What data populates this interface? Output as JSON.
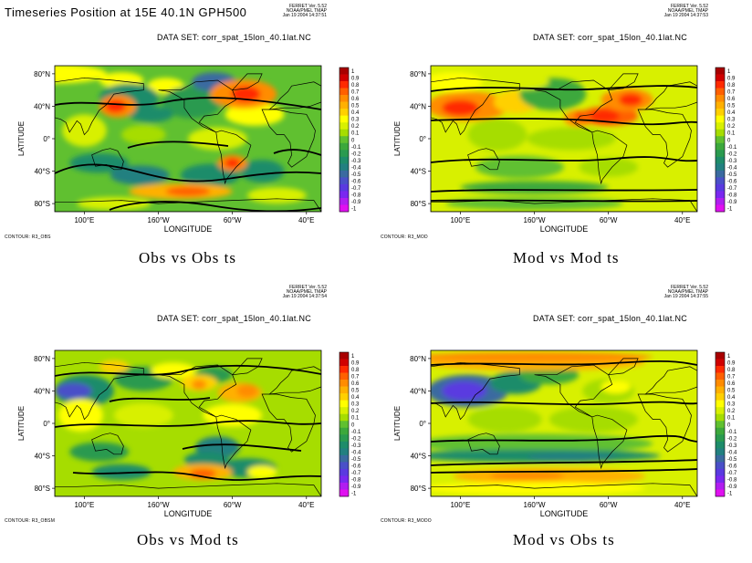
{
  "page_title": "Timeseries Position at 15E 40.1N GPH500",
  "colors": {
    "c_pos_1.0": "#a80000",
    "c_pos_0.9": "#d00000",
    "c_pos_0.8": "#ff2a00",
    "c_pos_0.7": "#ff6000",
    "c_pos_0.6": "#ff8c00",
    "c_pos_0.5": "#ffb000",
    "c_pos_0.4": "#ffd000",
    "c_pos_0.3": "#ffff00",
    "c_pos_0.2": "#d8f000",
    "c_pos_0.1": "#a6dd00",
    "c_zero": "#60c030",
    "c_neg_0.1": "#3ca83c",
    "c_neg_0.2": "#2a9a50",
    "c_neg_0.3": "#1e8c6a",
    "c_neg_0.4": "#228080",
    "c_neg_0.5": "#3a6aa0",
    "c_neg_0.6": "#4a50c8",
    "c_neg_0.7": "#5a3ae0",
    "c_neg_0.8": "#7a28f0",
    "c_neg_0.9": "#b01ef0",
    "c_neg_1.0": "#e010f0"
  },
  "colorbar": {
    "levels": [
      "1",
      "0.9",
      "0.8",
      "0.7",
      "0.6",
      "0.5",
      "0.4",
      "0.3",
      "0.2",
      "0.1",
      "0",
      "-0.1",
      "-0.2",
      "-0.3",
      "-0.4",
      "-0.5",
      "-0.6",
      "-0.7",
      "-0.8",
      "-0.9",
      "-1"
    ]
  },
  "axes": {
    "y_ticks": [
      "80°N",
      "40°N",
      "0°",
      "40°S",
      "80°S"
    ],
    "x_ticks": [
      "100°E",
      "160°W",
      "60°W",
      "40°E"
    ],
    "x_title": "LONGITUDE",
    "y_title": "LATITUDE"
  },
  "panels": [
    {
      "dataset": "DATA SET: corr_spat_15lon_40.1lat.NC",
      "ferret": [
        "FERRET Ver. 5.52",
        "NOAA/PMEL TMAP",
        "Jan 19 2004 14:37:51"
      ],
      "contour_label": "CONTOUR: R3_OBS",
      "caption": "Obs vs Obs ts",
      "background": 0.0
    },
    {
      "dataset": "DATA SET: corr_spat_15lon_40.1lat.NC",
      "ferret": [
        "FERRET Ver. 5.52",
        "NOAA/PMEL TMAP",
        "Jan 19 2004 14:37:53"
      ],
      "contour_label": "CONTOUR: R3_MOD",
      "caption": "Mod vs Mod ts",
      "background": 0.2
    },
    {
      "dataset": "DATA SET: corr_spat_15lon_40.1lat.NC",
      "ferret": [
        "FERRET Ver. 5.52",
        "NOAA/PMEL TMAP",
        "Jan 19 2004 14:37:54"
      ],
      "contour_label": "CONTOUR: R3_OBSM",
      "caption": "Obs vs Mod ts",
      "background": 0.1
    },
    {
      "dataset": "DATA SET: corr_spat_15lon_40.1lat.NC",
      "ferret": [
        "FERRET Ver. 5.52",
        "NOAA/PMEL TMAP",
        "Jan 19 2004 14:37:55"
      ],
      "contour_label": "CONTOUR: R3_MODO",
      "caption": "Mod vs Obs ts",
      "background": 0.2
    }
  ]
}
